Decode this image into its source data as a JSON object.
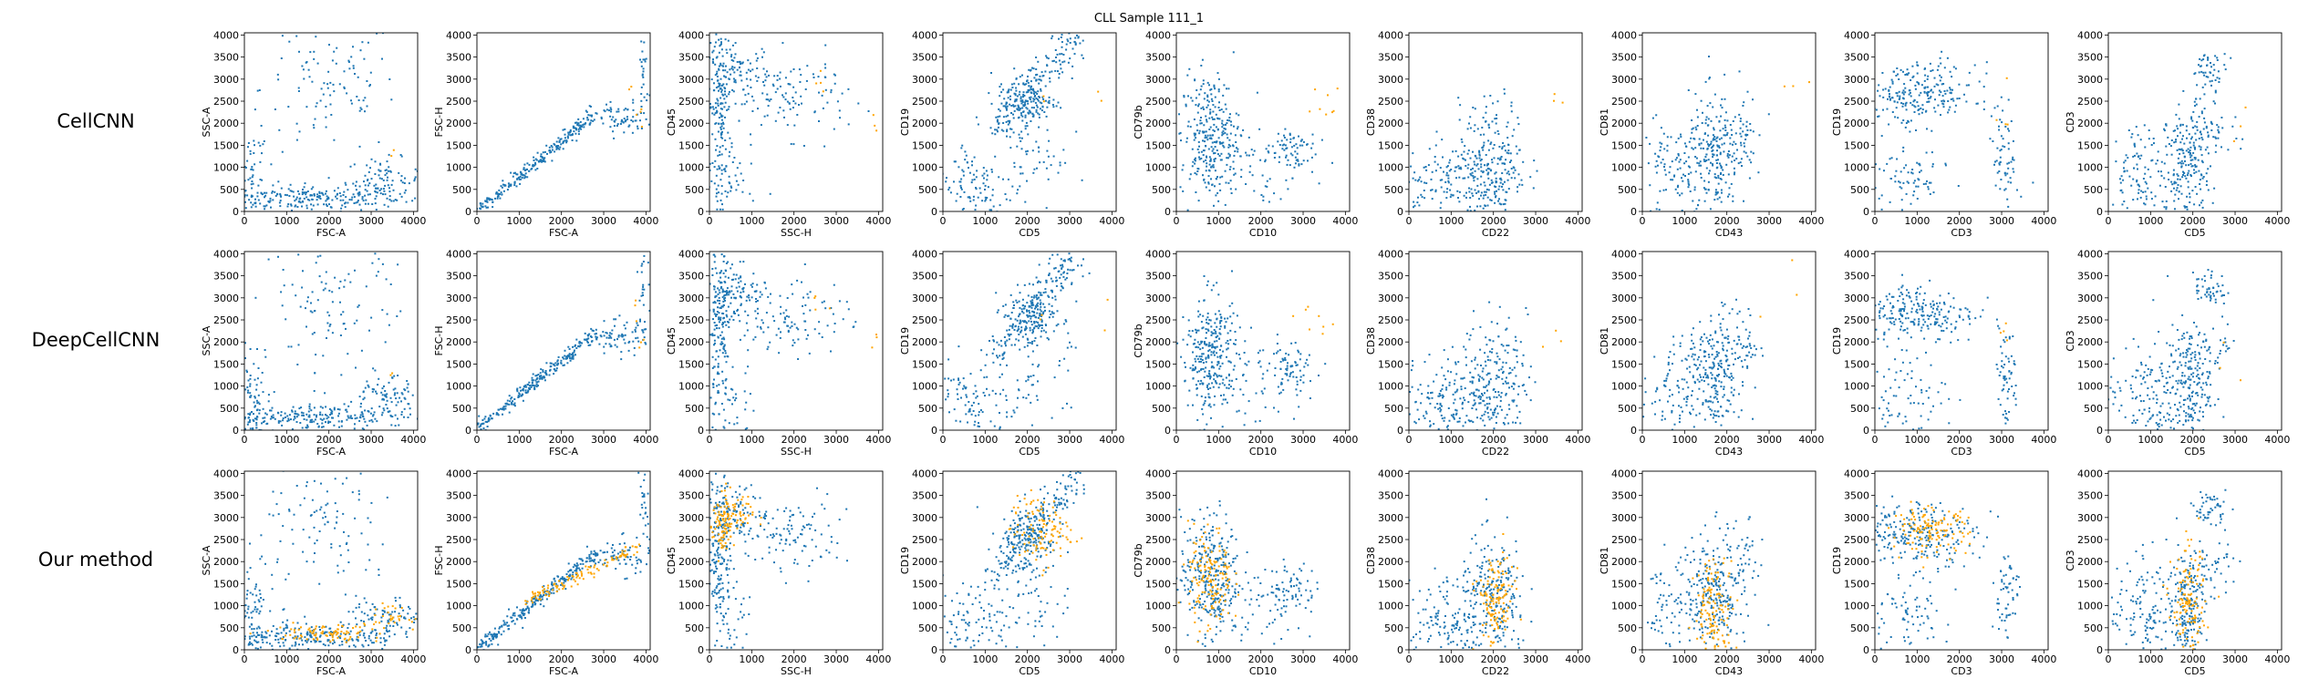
{
  "figure": {
    "title": "CLL Sample 111_1",
    "row_labels": [
      "CellCNN",
      "DeepCellCNN",
      "Our method"
    ]
  },
  "colors": {
    "background_cells": "#1f77b4",
    "selected_cells": "#ffa500"
  },
  "chart_data": {
    "type": "scatter",
    "title": "CLL Sample 111_1",
    "rows": [
      "CellCNN",
      "DeepCellCNN",
      "Our method"
    ],
    "panels": [
      {
        "xlabel": "FSC-A",
        "ylabel": "SSC-A",
        "xlim": [
          0,
          4100
        ],
        "ylim": [
          0,
          4050
        ],
        "xticks": [
          0,
          1000,
          2000,
          3000,
          4000
        ],
        "yticks": [
          0,
          500,
          1000,
          1500,
          2000,
          2500,
          3000,
          3500,
          4000
        ]
      },
      {
        "xlabel": "FSC-A",
        "ylabel": "FSC-H",
        "xlim": [
          0,
          4100
        ],
        "ylim": [
          0,
          4050
        ],
        "xticks": [
          0,
          1000,
          2000,
          3000,
          4000
        ],
        "yticks": [
          0,
          500,
          1000,
          1500,
          2000,
          2500,
          3000,
          3500,
          4000
        ]
      },
      {
        "xlabel": "SSC-H",
        "ylabel": "CD45",
        "xlim": [
          0,
          4100
        ],
        "ylim": [
          0,
          4050
        ],
        "xticks": [
          0,
          1000,
          2000,
          3000,
          4000
        ],
        "yticks": [
          0,
          500,
          1000,
          1500,
          2000,
          2500,
          3000,
          3500,
          4000
        ]
      },
      {
        "xlabel": "CD5",
        "ylabel": "CD19",
        "xlim": [
          0,
          4100
        ],
        "ylim": [
          0,
          4050
        ],
        "xticks": [
          0,
          1000,
          2000,
          3000,
          4000
        ],
        "yticks": [
          0,
          500,
          1000,
          1500,
          2000,
          2500,
          3000,
          3500,
          4000
        ]
      },
      {
        "xlabel": "CD10",
        "ylabel": "CD79b",
        "xlim": [
          0,
          4100
        ],
        "ylim": [
          0,
          4050
        ],
        "xticks": [
          0,
          1000,
          2000,
          3000,
          4000
        ],
        "yticks": [
          0,
          500,
          1000,
          1500,
          2000,
          2500,
          3000,
          3500,
          4000
        ]
      },
      {
        "xlabel": "CD22",
        "ylabel": "CD38",
        "xlim": [
          0,
          4100
        ],
        "ylim": [
          0,
          4050
        ],
        "xticks": [
          0,
          1000,
          2000,
          3000,
          4000
        ],
        "yticks": [
          0,
          500,
          1000,
          1500,
          2000,
          2500,
          3000,
          3500,
          4000
        ]
      },
      {
        "xlabel": "CD43",
        "ylabel": "CD81",
        "xlim": [
          0,
          4100
        ],
        "ylim": [
          0,
          4050
        ],
        "xticks": [
          0,
          1000,
          2000,
          3000,
          4000
        ],
        "yticks": [
          0,
          500,
          1000,
          1500,
          2000,
          2500,
          3000,
          3500,
          4000
        ]
      },
      {
        "xlabel": "CD3",
        "ylabel": "CD19",
        "xlim": [
          0,
          4100
        ],
        "ylim": [
          0,
          4050
        ],
        "xticks": [
          0,
          1000,
          2000,
          3000,
          4000
        ],
        "yticks": [
          0,
          500,
          1000,
          1500,
          2000,
          2500,
          3000,
          3500,
          4000
        ]
      },
      {
        "xlabel": "CD5",
        "ylabel": "CD3",
        "xlim": [
          0,
          4100
        ],
        "ylim": [
          0,
          4050
        ],
        "xticks": [
          0,
          1000,
          2000,
          3000,
          4000
        ],
        "yticks": [
          0,
          500,
          1000,
          1500,
          2000,
          2500,
          3000,
          3500,
          4000
        ]
      }
    ],
    "clusters": [
      [
        {
          "cx": 1500,
          "cy": 300,
          "sx": 1100,
          "sy": 150,
          "n": 220
        },
        {
          "cx": 3300,
          "cy": 700,
          "sx": 450,
          "sy": 250,
          "n": 90
        },
        {
          "cx": 2000,
          "cy": 2800,
          "sx": 800,
          "sy": 800,
          "n": 110
        },
        {
          "cx": 200,
          "cy": 600,
          "sx": 180,
          "sy": 700,
          "n": 70
        }
      ],
      [
        {
          "line": [
            [
              0,
              0
            ],
            [
              2800,
              2200
            ]
          ],
          "spread": 70,
          "n": 260
        },
        {
          "cx": 3400,
          "cy": 2100,
          "sx": 350,
          "sy": 200,
          "n": 70
        },
        {
          "cx": 3950,
          "cy": 3200,
          "sx": 60,
          "sy": 600,
          "n": 25
        }
      ],
      [
        {
          "cx": 250,
          "cy": 2400,
          "sx": 130,
          "sy": 900,
          "n": 160
        },
        {
          "cx": 700,
          "cy": 3100,
          "sx": 350,
          "sy": 300,
          "n": 90
        },
        {
          "cx": 2000,
          "cy": 2600,
          "sx": 650,
          "sy": 450,
          "n": 100
        },
        {
          "cx": 400,
          "cy": 600,
          "sx": 350,
          "sy": 500,
          "n": 60
        }
      ],
      [
        {
          "line": [
            [
              1300,
              1800
            ],
            [
              3100,
              3950
            ]
          ],
          "spread": 200,
          "n": 200
        },
        {
          "cx": 2000,
          "cy": 2500,
          "sx": 350,
          "sy": 350,
          "n": 120
        },
        {
          "cx": 700,
          "cy": 600,
          "sx": 500,
          "sy": 500,
          "n": 110
        },
        {
          "cx": 2200,
          "cy": 1200,
          "sx": 400,
          "sy": 600,
          "n": 50
        }
      ],
      [
        {
          "cx": 800,
          "cy": 1700,
          "sx": 350,
          "sy": 700,
          "n": 300
        },
        {
          "cx": 2700,
          "cy": 1400,
          "sx": 300,
          "sy": 300,
          "n": 70
        },
        {
          "cx": 1700,
          "cy": 900,
          "sx": 600,
          "sy": 500,
          "n": 50
        }
      ],
      [
        {
          "cx": 2000,
          "cy": 1100,
          "sx": 400,
          "sy": 700,
          "n": 230
        },
        {
          "cx": 900,
          "cy": 700,
          "sx": 550,
          "sy": 450,
          "n": 140
        }
      ],
      [
        {
          "cx": 1700,
          "cy": 1200,
          "sx": 300,
          "sy": 700,
          "n": 220
        },
        {
          "cx": 700,
          "cy": 900,
          "sx": 350,
          "sy": 600,
          "n": 90
        },
        {
          "cx": 2400,
          "cy": 1900,
          "sx": 200,
          "sy": 500,
          "n": 50
        }
      ],
      [
        {
          "cx": 1000,
          "cy": 2650,
          "sx": 700,
          "sy": 350,
          "n": 240
        },
        {
          "cx": 3100,
          "cy": 1200,
          "sx": 150,
          "sy": 600,
          "n": 60
        },
        {
          "cx": 700,
          "cy": 700,
          "sx": 500,
          "sy": 500,
          "n": 80
        }
      ],
      [
        {
          "cx": 1900,
          "cy": 1000,
          "sx": 250,
          "sy": 700,
          "n": 200
        },
        {
          "cx": 900,
          "cy": 800,
          "sx": 450,
          "sy": 600,
          "n": 130
        },
        {
          "cx": 2400,
          "cy": 3200,
          "sx": 200,
          "sy": 200,
          "n": 50
        },
        {
          "cx": 2500,
          "cy": 1900,
          "sx": 300,
          "sy": 300,
          "n": 40
        }
      ]
    ],
    "selected": [
      [
        {
          "cx": 3500,
          "cy": 1200,
          "sx": 60,
          "sy": 80,
          "n": 2
        }
      ],
      [
        {
          "cx": 3800,
          "cy": 2200,
          "sx": 80,
          "sy": 200,
          "n": 4
        },
        {
          "cx": 3700,
          "cy": 2900,
          "sx": 60,
          "sy": 150,
          "n": 2
        }
      ],
      [
        {
          "cx": 3900,
          "cy": 2000,
          "sx": 80,
          "sy": 200,
          "n": 3
        },
        {
          "cx": 2600,
          "cy": 2800,
          "sx": 100,
          "sy": 150,
          "n": 4
        }
      ],
      [
        {
          "cx": 3800,
          "cy": 2700,
          "sx": 100,
          "sy": 300,
          "n": 2
        },
        {
          "cx": 2400,
          "cy": 2600,
          "sx": 100,
          "sy": 150,
          "n": 2
        }
      ],
      [
        {
          "cx": 3300,
          "cy": 2600,
          "sx": 300,
          "sy": 350,
          "n": 8
        }
      ],
      [
        {
          "cx": 3500,
          "cy": 2400,
          "sx": 150,
          "sy": 300,
          "n": 3
        }
      ],
      [
        {
          "cx": 3300,
          "cy": 3100,
          "sx": 250,
          "sy": 400,
          "n": 3
        }
      ],
      [
        {
          "cx": 3100,
          "cy": 2200,
          "sx": 120,
          "sy": 300,
          "n": 4
        }
      ],
      [
        {
          "cx": 3100,
          "cy": 1900,
          "sx": 300,
          "sy": 250,
          "n": 3
        }
      ],
      [
        {
          "cx": 3500,
          "cy": 1200,
          "sx": 60,
          "sy": 80,
          "n": 2
        }
      ],
      [
        {
          "cx": 3800,
          "cy": 2200,
          "sx": 80,
          "sy": 200,
          "n": 4
        },
        {
          "cx": 3700,
          "cy": 2900,
          "sx": 60,
          "sy": 150,
          "n": 2
        }
      ],
      [
        {
          "cx": 3900,
          "cy": 2000,
          "sx": 80,
          "sy": 200,
          "n": 3
        },
        {
          "cx": 2600,
          "cy": 2800,
          "sx": 100,
          "sy": 150,
          "n": 4
        }
      ],
      [
        {
          "cx": 3800,
          "cy": 2700,
          "sx": 100,
          "sy": 300,
          "n": 2
        },
        {
          "cx": 2400,
          "cy": 2600,
          "sx": 100,
          "sy": 150,
          "n": 2
        }
      ],
      [
        {
          "cx": 3300,
          "cy": 2600,
          "sx": 300,
          "sy": 350,
          "n": 8
        }
      ],
      [
        {
          "cx": 3500,
          "cy": 2400,
          "sx": 150,
          "sy": 300,
          "n": 3
        }
      ],
      [
        {
          "cx": 3300,
          "cy": 3100,
          "sx": 250,
          "sy": 400,
          "n": 3
        }
      ],
      [
        {
          "cx": 3100,
          "cy": 2200,
          "sx": 120,
          "sy": 300,
          "n": 4
        }
      ],
      [
        {
          "cx": 3100,
          "cy": 1900,
          "sx": 300,
          "sy": 250,
          "n": 3
        }
      ],
      [
        {
          "cx": 1900,
          "cy": 400,
          "sx": 700,
          "sy": 100,
          "n": 90
        },
        {
          "cx": 3400,
          "cy": 750,
          "sx": 250,
          "sy": 120,
          "n": 30
        }
      ],
      [
        {
          "line": [
            [
              1200,
              1100
            ],
            [
              3800,
              2300
            ]
          ],
          "spread": 70,
          "n": 110
        }
      ],
      [
        {
          "cx": 320,
          "cy": 2800,
          "sx": 120,
          "sy": 400,
          "n": 90
        },
        {
          "cx": 650,
          "cy": 3050,
          "sx": 200,
          "sy": 200,
          "n": 40
        }
      ],
      [
        {
          "cx": 2300,
          "cy": 2700,
          "sx": 350,
          "sy": 400,
          "n": 110
        }
      ],
      [
        {
          "cx": 800,
          "cy": 1600,
          "sx": 260,
          "sy": 600,
          "n": 150
        }
      ],
      [
        {
          "cx": 2050,
          "cy": 1100,
          "sx": 220,
          "sy": 550,
          "n": 140
        }
      ],
      [
        {
          "cx": 1700,
          "cy": 900,
          "sx": 230,
          "sy": 600,
          "n": 140
        }
      ],
      [
        {
          "cx": 1300,
          "cy": 2700,
          "sx": 450,
          "sy": 250,
          "n": 130
        }
      ],
      [
        {
          "cx": 1900,
          "cy": 1000,
          "sx": 200,
          "sy": 600,
          "n": 130
        }
      ]
    ]
  }
}
